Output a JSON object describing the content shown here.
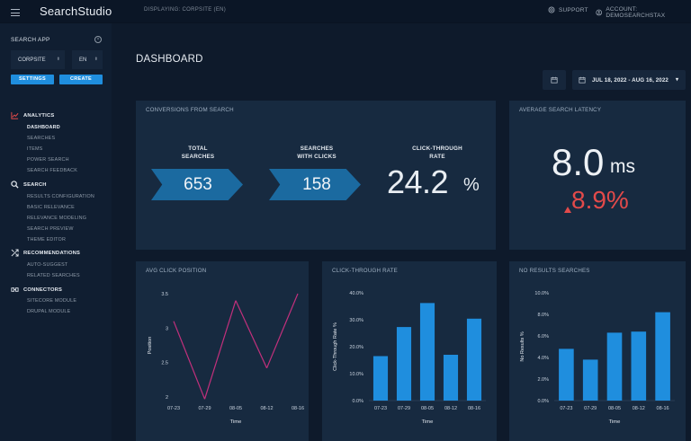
{
  "app": {
    "brand": "SearchStudio",
    "displaying": "DISPLAYING: CORPSITE (EN)"
  },
  "topbar": {
    "support": "SUPPORT",
    "account": "ACCOUNT: DEMOSEARCHSTAX"
  },
  "sidebar": {
    "search_app_label": "SEARCH APP",
    "site_select": "CORPSITE",
    "lang_select": "EN",
    "settings_button": "SETTINGS",
    "create_button": "CREATE",
    "sections": [
      {
        "label": "ANALYTICS",
        "icon": "chart-line-icon",
        "items": [
          "DASHBOARD",
          "SEARCHES",
          "ITEMS",
          "POWER SEARCH",
          "SEARCH FEEDBACK"
        ]
      },
      {
        "label": "SEARCH",
        "icon": "search-icon",
        "items": [
          "RESULTS CONFIGURATION",
          "BASIC RELEVANCE",
          "RELEVANCE MODELING",
          "SEARCH PREVIEW",
          "THEME EDITOR"
        ]
      },
      {
        "label": "RECOMMENDATIONS",
        "icon": "recommendations-icon",
        "items": [
          "AUTO-SUGGEST",
          "RELATED SEARCHES"
        ]
      },
      {
        "label": "CONNECTORS",
        "icon": "connectors-icon",
        "items": [
          "SITECORE MODULE",
          "DRUPAL MODULE"
        ]
      }
    ]
  },
  "main": {
    "title": "DASHBOARD",
    "date_range": "JUL 18, 2022 - AUG 16, 2022"
  },
  "conversions": {
    "title": "CONVERSIONS FROM SEARCH",
    "total_label_1": "TOTAL",
    "total_label_2": "SEARCHES",
    "total_value": "653",
    "clicks_label_1": "SEARCHES",
    "clicks_label_2": "WITH CLICKS",
    "clicks_value": "158",
    "ctr_label_1": "CLICK-THROUGH",
    "ctr_label_2": "RATE",
    "ctr_value": "24.2",
    "ctr_unit": "%"
  },
  "latency": {
    "title": "AVERAGE SEARCH LATENCY",
    "value": "8.0",
    "unit": "ms",
    "change": "8.9%",
    "change_color": "#e24a4a"
  },
  "chart_data": [
    {
      "type": "line",
      "title": "AVG CLICK POSITION",
      "xlabel": "Time",
      "ylabel": "Position",
      "categories": [
        "07-23",
        "07-29",
        "08-05",
        "08-12",
        "08-16"
      ],
      "series": [
        {
          "values": [
            3.1,
            1.97,
            3.4,
            2.42,
            3.5
          ]
        }
      ],
      "ylim": [
        2,
        3.5
      ],
      "yticks": [
        "3.5",
        "3",
        "2.5",
        "2"
      ],
      "color": "#c2307c"
    },
    {
      "type": "bar",
      "title": "CLICK-THROUGH RATE",
      "xlabel": "Time",
      "ylabel": "Click-Through Rate %",
      "categories": [
        "07-23",
        "07-29",
        "08-05",
        "08-12",
        "08-16"
      ],
      "values": [
        16.5,
        27.3,
        36.2,
        17.0,
        30.4
      ],
      "ylim": [
        0,
        40
      ],
      "yticks": [
        "40.0%",
        "30.0%",
        "20.0%",
        "10.0%",
        "0.0%"
      ],
      "color": "#1f8ede"
    },
    {
      "type": "bar",
      "title": "NO RESULTS SEARCHES",
      "xlabel": "Time",
      "ylabel": "No Results %",
      "categories": [
        "07-23",
        "07-29",
        "08-05",
        "08-12",
        "08-16"
      ],
      "values": [
        4.8,
        3.8,
        6.3,
        6.4,
        8.2
      ],
      "ylim": [
        0,
        10
      ],
      "yticks": [
        "10.0%",
        "8.0%",
        "6.0%",
        "4.0%",
        "2.0%",
        "0.0%"
      ],
      "color": "#1f8ede"
    }
  ]
}
